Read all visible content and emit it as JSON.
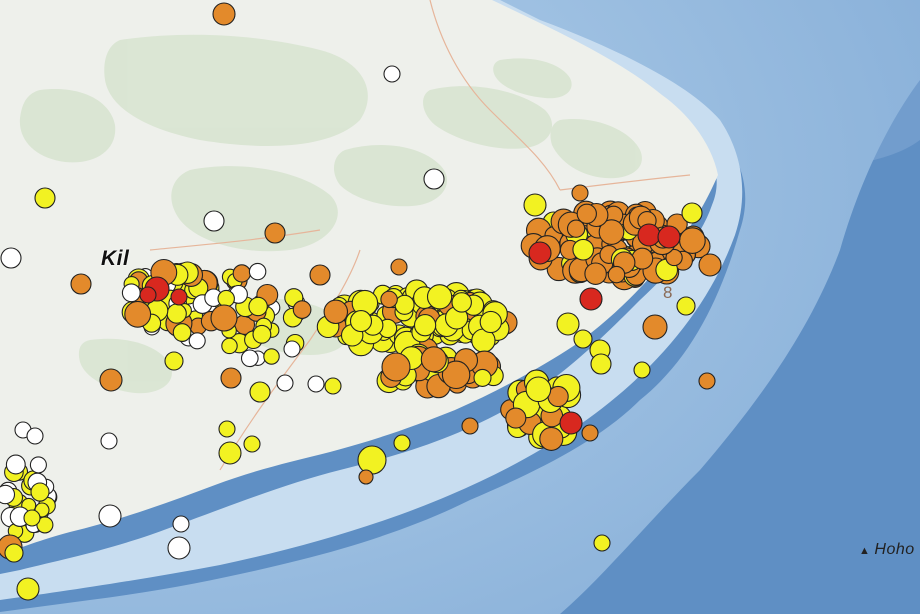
{
  "map": {
    "place_label_kilauea": "Kil",
    "route_label": "8",
    "place_label_hoho": "Hoho",
    "marker_glyph": "▲",
    "colors": {
      "ocean_deep": "#5f8fc4",
      "ocean_shelf": "#9cc0e3",
      "ocean_shallow": "#d0e3f2",
      "land": "#eef0eb",
      "vegetation": "#d8e4d1",
      "road": "#e6b59a"
    },
    "legend_colors": {
      "red": "#d8281f",
      "orange": "#e38a2b",
      "yellow": "#f2f222",
      "white": "#ffffff"
    },
    "icons": [
      "peak-marker-icon"
    ]
  }
}
